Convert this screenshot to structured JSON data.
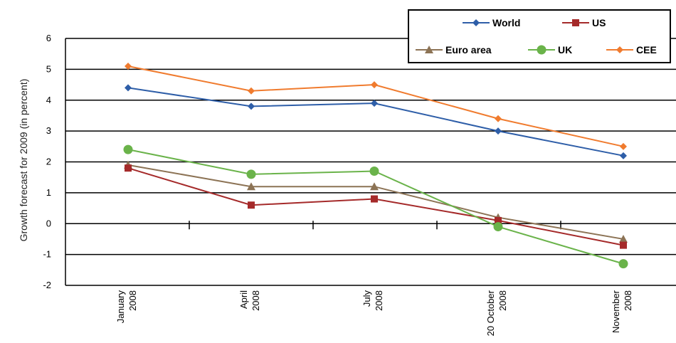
{
  "chart_data": {
    "type": "line",
    "ylabel": "Growth forecast for 2009 (in percent)",
    "xlabel": "",
    "ylim": [
      -2,
      6
    ],
    "yticks": [
      "-2",
      "-1",
      "0",
      "1",
      "2",
      "3",
      "4",
      "5",
      "6"
    ],
    "grid": "horizontal",
    "legend_position": "top-right",
    "categories": [
      [
        "January",
        "2008"
      ],
      [
        "April",
        "2008"
      ],
      [
        "July",
        "2008"
      ],
      [
        "20 October",
        "2008"
      ],
      [
        "November",
        "2008"
      ]
    ],
    "series": [
      {
        "name": "World",
        "color": "#2e5ea8",
        "marker": "diamond",
        "values": [
          4.4,
          3.8,
          3.9,
          3.0,
          2.2
        ]
      },
      {
        "name": "US",
        "color": "#a52a2a",
        "marker": "square",
        "values": [
          1.8,
          0.6,
          0.8,
          0.1,
          -0.7
        ]
      },
      {
        "name": "Euro area",
        "color": "#8c7355",
        "marker": "triangle",
        "values": [
          1.9,
          1.2,
          1.2,
          0.2,
          -0.5
        ]
      },
      {
        "name": "UK",
        "color": "#6ab34a",
        "marker": "circle",
        "values": [
          2.4,
          1.6,
          1.7,
          -0.1,
          -1.3
        ]
      },
      {
        "name": "CEE",
        "color": "#f07b2e",
        "marker": "diamond",
        "values": [
          5.1,
          4.3,
          4.5,
          3.4,
          2.5
        ]
      }
    ]
  }
}
